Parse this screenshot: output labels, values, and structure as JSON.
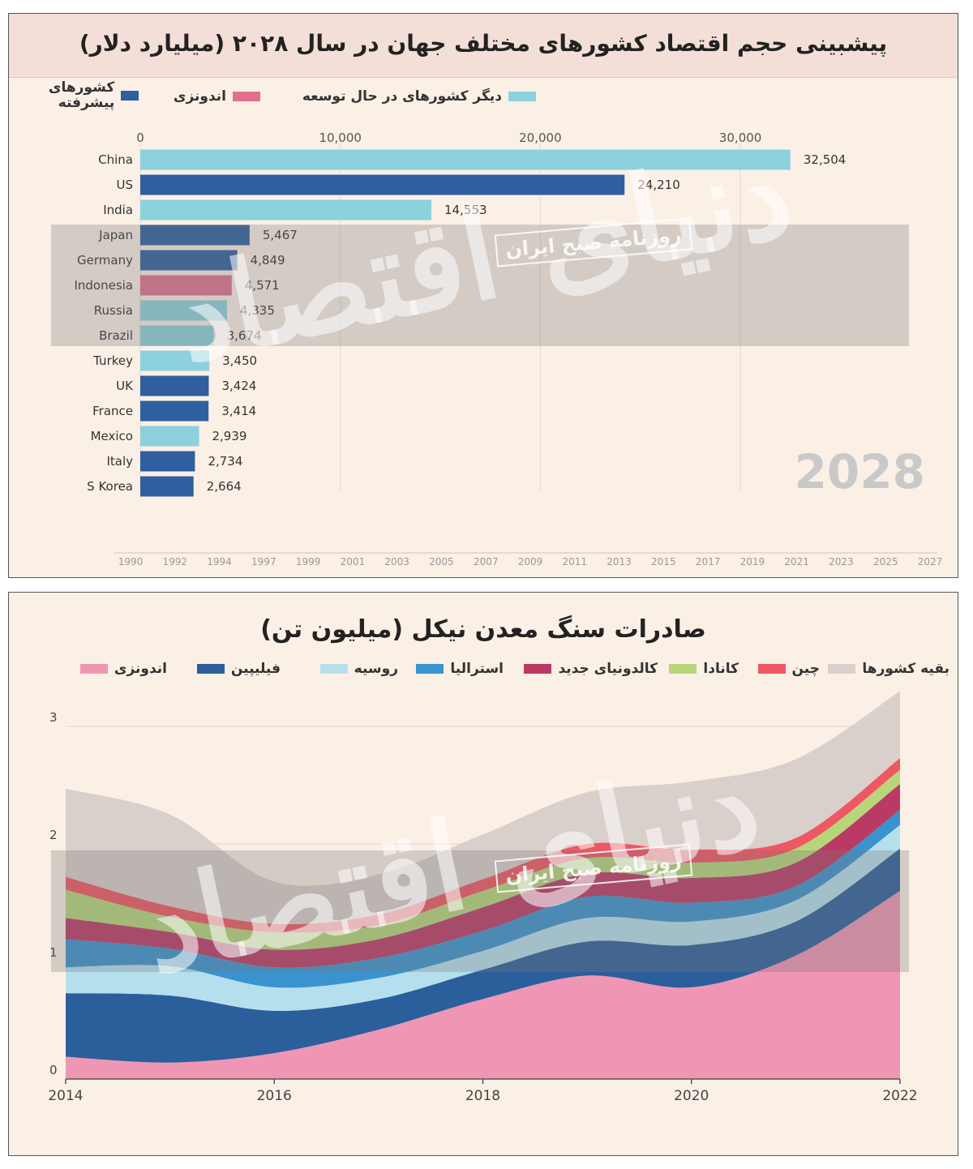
{
  "chart_data": [
    {
      "type": "bar",
      "title": "پیشبینی حجم اقتصاد کشورهای مختلف جهان در سال ۲۰۲۸ (میلیارد دلار)",
      "legend": [
        {
          "name": "کشورهای پیشرفته",
          "color": "#2f5f9e"
        },
        {
          "name": "اندونزی",
          "color": "#e0708e"
        },
        {
          "name": "دیگر کشورهای در حال توسعه",
          "color": "#8dd1dd"
        }
      ],
      "categories": [
        "China",
        "US",
        "India",
        "Japan",
        "Germany",
        "Indonesia",
        "Russia",
        "Brazil",
        "Turkey",
        "UK",
        "France",
        "Mexico",
        "Italy",
        "S Korea"
      ],
      "values": [
        32504,
        24210,
        14553,
        5467,
        4849,
        4571,
        4335,
        3674,
        3450,
        3424,
        3414,
        2939,
        2734,
        2664
      ],
      "value_labels": [
        "32,504",
        "24,210",
        "14,553",
        "5,467",
        "4,849",
        "4,571",
        "4,335",
        "3,674",
        "3,450",
        "3,424",
        "3,414",
        "2,939",
        "2,734",
        "2,664"
      ],
      "groups": [
        "developing",
        "advanced",
        "developing",
        "advanced",
        "advanced",
        "indonesia",
        "developing",
        "developing",
        "developing",
        "advanced",
        "advanced",
        "developing",
        "advanced",
        "advanced"
      ],
      "colors": {
        "advanced": "#2f5f9e",
        "indonesia": "#e0708e",
        "developing": "#8dd1dd"
      },
      "xlim": [
        0,
        35000
      ],
      "xticks": [
        0,
        10000,
        20000,
        30000
      ],
      "xtick_labels": [
        "0",
        "10,000",
        "20,000",
        "30,000"
      ],
      "timeline_labels": [
        "1990",
        "1992",
        "1994",
        "1997",
        "1999",
        "2001",
        "2003",
        "2005",
        "2007",
        "2009",
        "2011",
        "2013",
        "2015",
        "2017",
        "2019",
        "2021",
        "2023",
        "2025",
        "2027"
      ],
      "year_label": "2028",
      "watermark_stamp": "روزنامه صبح ایران",
      "watermark_script": "دنیای اقتصاد",
      "orientation": "horizontal",
      "grid": true
    },
    {
      "type": "area",
      "title": "صادرات سنگ معدن نیکل (میلیون تن)",
      "x": [
        2014,
        2015,
        2016,
        2017,
        2018,
        2019,
        2020,
        2021,
        2022
      ],
      "xticks": [
        2014,
        2016,
        2018,
        2020,
        2022
      ],
      "ylim": [
        0,
        3.3
      ],
      "yticks": [
        0,
        1,
        2,
        3
      ],
      "series": [
        {
          "name": "اندونزی",
          "color": "#f096b5",
          "values": [
            0.19,
            0.14,
            0.22,
            0.42,
            0.68,
            0.88,
            0.78,
            1.05,
            1.6
          ]
        },
        {
          "name": "فیلیپین",
          "color": "#2b5f9b",
          "values": [
            0.54,
            0.57,
            0.36,
            0.26,
            0.25,
            0.29,
            0.36,
            0.29,
            0.36
          ]
        },
        {
          "name": "روسیه",
          "color": "#b6dfee",
          "values": [
            0.22,
            0.25,
            0.2,
            0.18,
            0.16,
            0.2,
            0.2,
            0.18,
            0.2
          ]
        },
        {
          "name": "استرالیا",
          "color": "#3a93cf",
          "values": [
            0.24,
            0.15,
            0.17,
            0.17,
            0.17,
            0.18,
            0.16,
            0.12,
            0.13
          ]
        },
        {
          "name": "کالدونیای جدید",
          "color": "#bb3a65",
          "values": [
            0.18,
            0.14,
            0.15,
            0.16,
            0.2,
            0.2,
            0.21,
            0.2,
            0.22
          ]
        },
        {
          "name": "کانادا",
          "color": "#b7d67a",
          "values": [
            0.24,
            0.13,
            0.15,
            0.12,
            0.14,
            0.13,
            0.13,
            0.12,
            0.12
          ]
        },
        {
          "name": "چین",
          "color": "#ef5763",
          "values": [
            0.11,
            0.09,
            0.07,
            0.09,
            0.1,
            0.12,
            0.11,
            0.09,
            0.1
          ]
        },
        {
          "name": "بقیه کشورها",
          "color": "#d9cfcb",
          "values": [
            0.75,
            0.78,
            0.36,
            0.34,
            0.38,
            0.44,
            0.58,
            0.67,
            0.57
          ]
        }
      ],
      "watermark_stamp": "روزنامه صبح ایران",
      "watermark_script": "دنیای اقتصاد",
      "grid": true
    }
  ]
}
